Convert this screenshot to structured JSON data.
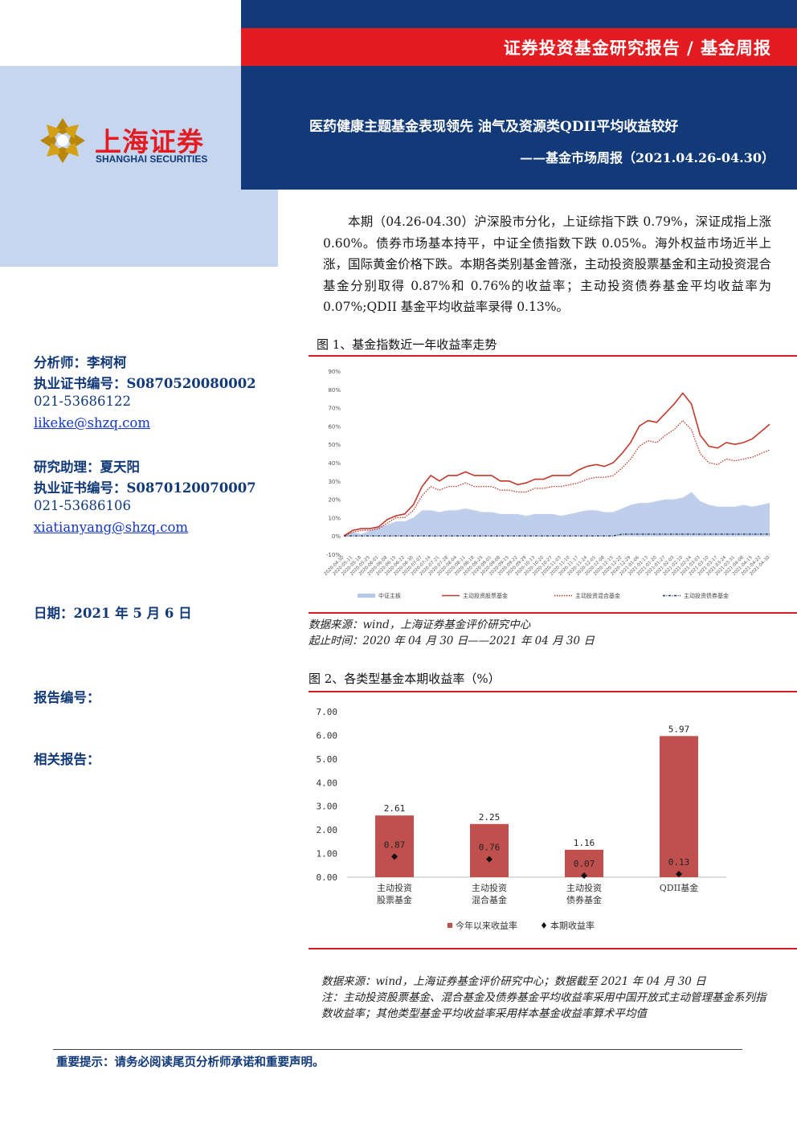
{
  "header": {
    "report_type": "证券投资基金研究报告 / 基金周报",
    "title": "医药健康主题基金表现领先 油气及资源类QDII平均收益较好",
    "subtitle": "——基金市场周报（2021.04.26-04.30）",
    "logo_cn": "上海证券",
    "logo_en": "SHANGHAI SECURITIES"
  },
  "colors": {
    "navy": "#123a78",
    "red": "#e31c22",
    "light_blue": "#c7d6ef",
    "bar_red": "#c0504d",
    "area_blue": "#b4c7e7"
  },
  "summary": "本期（04.26-04.30）沪深股市分化，上证综指下跌 0.79%，深证成指上涨 0.60%。债券市场基本持平，中证全债指数下跌 0.05%。海外权益市场近半上涨，国际黄金价格下跌。本期各类别基金普涨，主动投资股票基金和主动投资混合基金分别取得 0.87%和 0.76%的收益率；主动投资债券基金平均收益率为 0.07%;QDII 基金平均收益率录得 0.13%。",
  "analysts": [
    {
      "name": "分析师：李柯柯",
      "cert": "执业证书编号：S0870520080002",
      "phone": "021-53686122",
      "email": "likeke@shzq.com"
    },
    {
      "name": "研究助理：夏天阳",
      "cert": "执业证书编号：S0870120070007",
      "phone": "021-53686106",
      "email": "xiatianyang@shzq.com"
    }
  ],
  "date": "日期：2021 年 5 月 6 日",
  "report_no": "报告编号：",
  "related": "相关报告：",
  "fig1": {
    "title": "图 1、基金指数近一年收益率走势",
    "source": "数据来源：wind，上海证券基金评价研究中心",
    "period": "起止时间：2020 年 04 月 30 日——2021 年 04 月 30 日",
    "chart_data": {
      "type": "line",
      "y_ticks": [
        "90%",
        "80%",
        "70%",
        "60%",
        "50%",
        "40%",
        "30%",
        "20%",
        "10%",
        "0%",
        "-10%"
      ],
      "ylim": [
        -10,
        90
      ],
      "x_ticks": [
        "2020-04-30",
        "2020-05-11",
        "2020-05-18",
        "2020-05-25",
        "2020-06-01",
        "2020-06-08",
        "2020-06-15",
        "2020-06-22",
        "2020-06-30",
        "2020-07-07",
        "2020-07-14",
        "2020-07-21",
        "2020-07-28",
        "2020-08-04",
        "2020-08-11",
        "2020-08-18",
        "2020-08-25",
        "2020-09-01",
        "2020-09-08",
        "2020-09-15",
        "2020-09-22",
        "2020-09-29",
        "2020-10-13",
        "2020-10-20",
        "2020-10-27",
        "2020-11-03",
        "2020-11-10",
        "2020-11-17",
        "2020-11-24",
        "2020-12-01",
        "2020-12-08",
        "2020-12-15",
        "2020-12-22",
        "2020-12-29",
        "2021-01-06",
        "2021-01-13",
        "2021-01-20",
        "2021-01-27",
        "2021-02-03",
        "2021-02-10",
        "2021-02-24",
        "2021-03-03",
        "2021-03-10",
        "2021-03-17",
        "2021-03-24",
        "2021-03-31",
        "2021-04-08",
        "2021-04-15",
        "2021-04-22",
        "2021-04-30"
      ],
      "legend": [
        "中证主板",
        "主动投资股票基金",
        "主动投资混合基金",
        "主动投资债券基金"
      ],
      "series": [
        {
          "name": "中证主板",
          "style": "area",
          "values": [
            0,
            2,
            1,
            3,
            5,
            6,
            8,
            8,
            10,
            14,
            14,
            13,
            14,
            14,
            15,
            14,
            13,
            13,
            12,
            12,
            12,
            11,
            12,
            12,
            12,
            11,
            12,
            13,
            14,
            14,
            13,
            13,
            15,
            17,
            18,
            18,
            19,
            20,
            20,
            21,
            24,
            19,
            17,
            16,
            16,
            16,
            17,
            16,
            17,
            18
          ]
        },
        {
          "name": "主动投资股票基金",
          "style": "solid",
          "values": [
            0,
            3,
            4,
            4,
            5,
            9,
            11,
            12,
            17,
            27,
            33,
            30,
            33,
            33,
            35,
            33,
            33,
            33,
            30,
            30,
            28,
            29,
            31,
            31,
            33,
            33,
            33,
            36,
            38,
            39,
            38,
            40,
            45,
            51,
            60,
            63,
            62,
            67,
            72,
            78,
            72,
            55,
            49,
            48,
            51,
            50,
            51,
            53,
            57,
            61
          ]
        },
        {
          "name": "主动投资混合基金",
          "style": "dotted",
          "values": [
            0,
            2,
            3,
            3,
            4,
            7,
            10,
            10,
            14,
            22,
            27,
            25,
            27,
            27,
            29,
            27,
            27,
            27,
            25,
            25,
            24,
            24,
            26,
            26,
            27,
            27,
            28,
            29,
            31,
            32,
            32,
            33,
            37,
            42,
            49,
            52,
            51,
            55,
            58,
            63,
            58,
            45,
            40,
            39,
            42,
            41,
            42,
            43,
            45,
            47
          ]
        },
        {
          "name": "主动投资债券基金",
          "style": "dash-dot",
          "values": [
            0,
            0,
            0,
            0,
            0,
            0,
            0,
            0,
            0,
            0,
            0,
            0,
            0,
            0,
            0,
            0,
            0,
            0,
            0,
            0,
            0,
            0,
            0,
            0,
            0,
            0,
            0,
            0,
            0,
            0,
            0,
            0,
            1,
            1,
            1,
            1,
            1,
            1,
            1,
            1,
            1,
            1,
            1,
            1,
            1,
            1,
            1,
            1,
            1,
            1
          ]
        }
      ]
    }
  },
  "fig2": {
    "title": "图 2、各类型基金本期收益率（%）",
    "chart_data": {
      "type": "bar",
      "categories": [
        [
          "主动投资",
          "股票基金"
        ],
        [
          "主动投资",
          "混合基金"
        ],
        [
          "主动投资",
          "债券基金"
        ],
        [
          "QDII基金"
        ]
      ],
      "series": [
        {
          "name": "今年以来收益率",
          "type": "bar",
          "values": [
            2.61,
            2.25,
            1.16,
            5.97
          ],
          "labels": [
            "2.61",
            "2.25",
            "1.16",
            "5.97"
          ]
        },
        {
          "name": "本期收益率",
          "type": "point",
          "values": [
            0.87,
            0.76,
            0.07,
            0.13
          ],
          "labels": [
            "0.87",
            "0.76",
            "0.07",
            "0.13"
          ]
        }
      ],
      "y_ticks": [
        "7.00",
        "6.00",
        "5.00",
        "4.00",
        "3.00",
        "2.00",
        "1.00",
        "0.00"
      ],
      "ylim": [
        0,
        7
      ]
    },
    "source": "数据来源：wind，上海证券基金评价研究中心；数据截至 2021 年 04 月 30 日",
    "note": "注：主动投资股票基金、混合基金及债券基金平均收益率采用中国开放式主动管理基金系列指数收益率；其他类型基金平均收益率采用样本基金收益率算术平均值"
  },
  "footer": "重要提示：请务必阅读尾页分析师承诺和重要声明。"
}
